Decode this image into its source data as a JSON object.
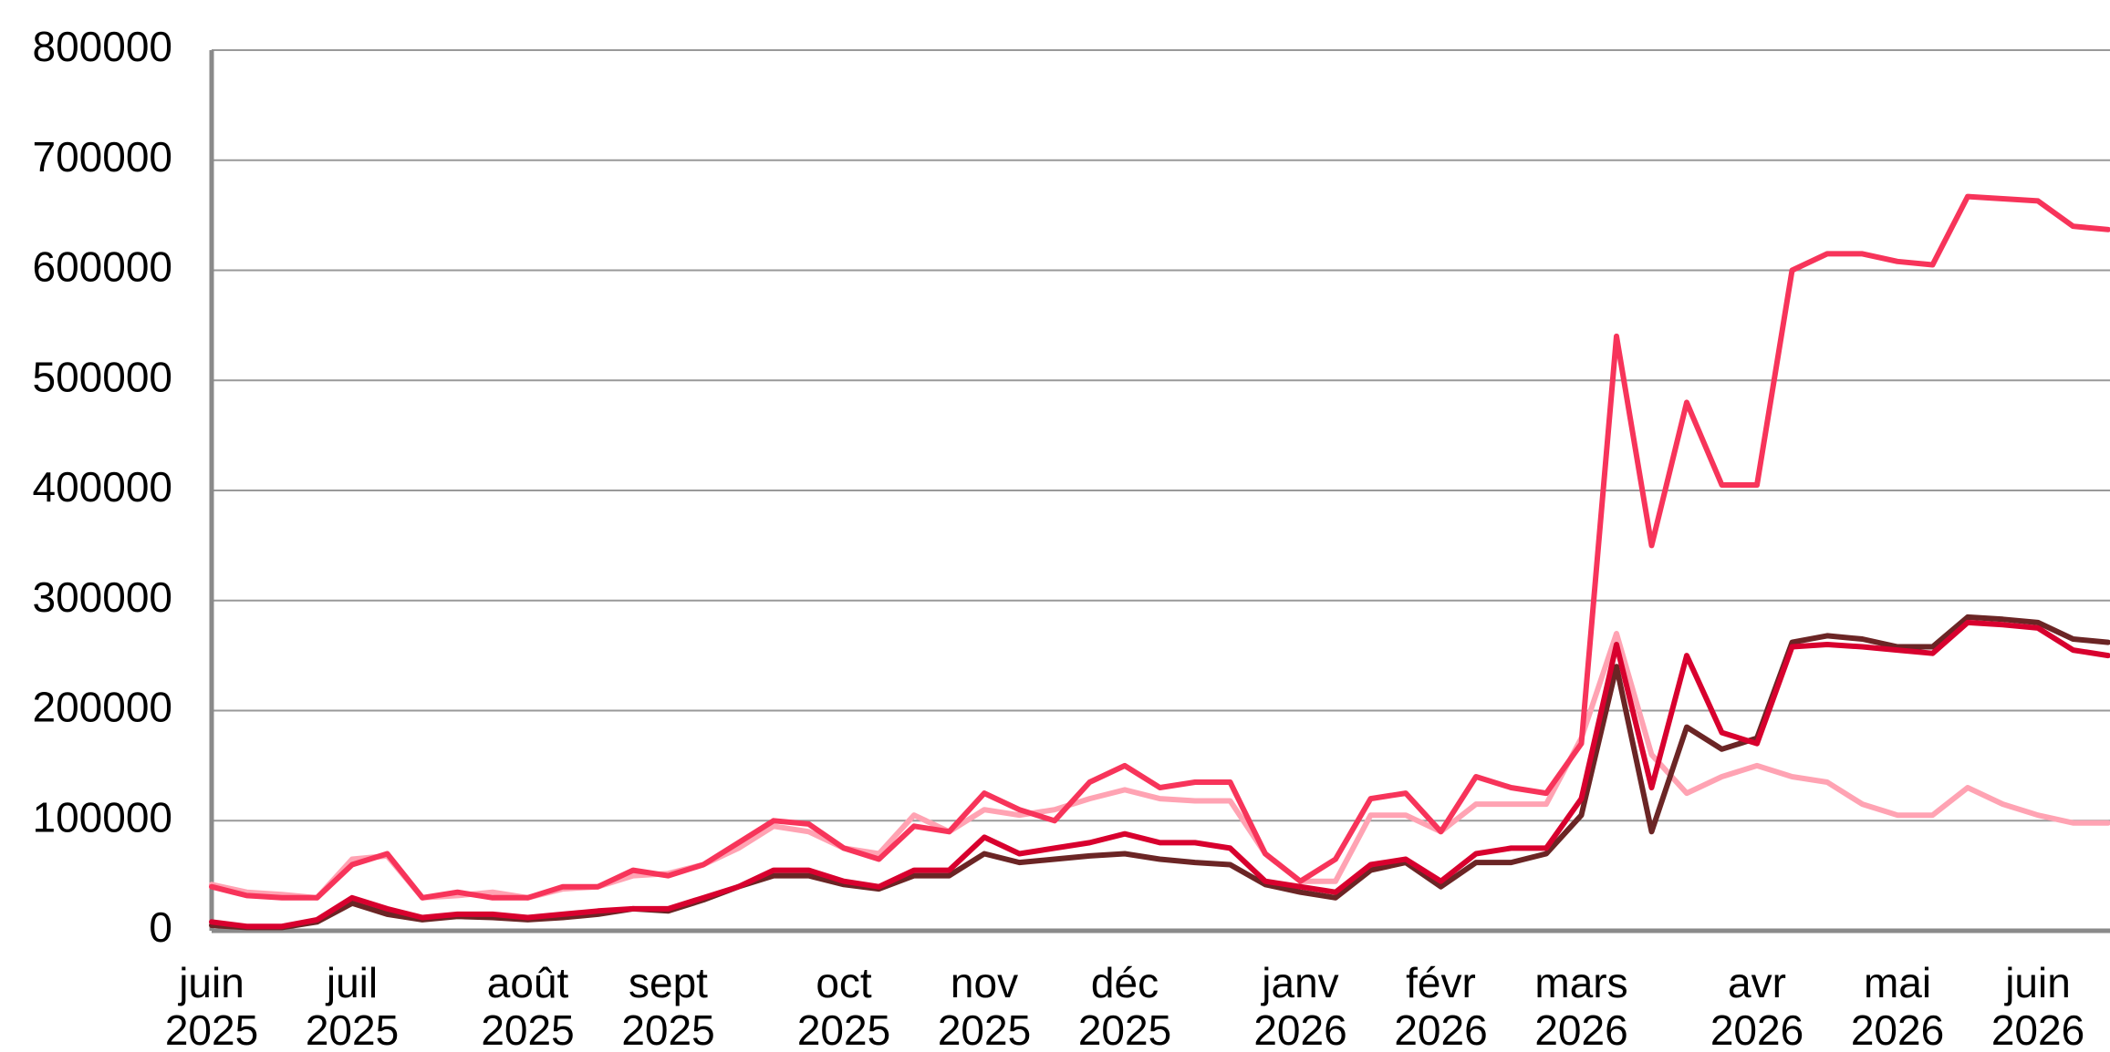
{
  "chart_data": {
    "type": "line",
    "categories": [
      "juin 2025",
      null,
      null,
      null,
      "juil 2025",
      null,
      null,
      null,
      null,
      "août 2025",
      null,
      null,
      null,
      "sept 2025",
      null,
      null,
      null,
      null,
      "oct 2025",
      null,
      null,
      null,
      "nov 2025",
      null,
      null,
      null,
      "déc 2025",
      null,
      null,
      null,
      null,
      "janv 2026",
      null,
      null,
      null,
      "févr 2026",
      null,
      null,
      null,
      "mars 2026",
      null,
      null,
      null,
      null,
      "avr 2026",
      null,
      null,
      null,
      "mai 2026",
      null,
      null,
      null,
      "juin 2026",
      null,
      null
    ],
    "series": [
      {
        "color": "#ffa3b3",
        "values": [
          42000,
          35000,
          33000,
          30000,
          65000,
          68000,
          30000,
          32000,
          35000,
          30000,
          38000,
          40000,
          50000,
          52000,
          60000,
          75000,
          95000,
          90000,
          75000,
          70000,
          105000,
          90000,
          110000,
          105000,
          110000,
          120000,
          128000,
          120000,
          118000,
          118000,
          70000,
          45000,
          45000,
          105000,
          105000,
          90000,
          115000,
          115000,
          115000,
          175000,
          270000,
          160000,
          125000,
          140000,
          150000,
          140000,
          135000,
          115000,
          105000,
          105000,
          130000,
          115000,
          105000,
          98000,
          98000
        ]
      },
      {
        "color": "#6b2525",
        "values": [
          5000,
          3000,
          3000,
          8000,
          25000,
          15000,
          10000,
          13000,
          12000,
          10000,
          12000,
          15000,
          20000,
          18000,
          28000,
          40000,
          50000,
          50000,
          42000,
          38000,
          50000,
          50000,
          70000,
          62000,
          65000,
          68000,
          70000,
          65000,
          62000,
          60000,
          42000,
          35000,
          30000,
          55000,
          62000,
          40000,
          62000,
          62000,
          70000,
          105000,
          240000,
          90000,
          185000,
          165000,
          175000,
          262000,
          268000,
          265000,
          258000,
          258000,
          285000,
          283000,
          280000,
          265000,
          262000
        ]
      },
      {
        "color": "#d8002e",
        "values": [
          8000,
          4000,
          4000,
          10000,
          30000,
          20000,
          12000,
          15000,
          15000,
          12000,
          15000,
          18000,
          20000,
          20000,
          30000,
          40000,
          55000,
          55000,
          45000,
          40000,
          55000,
          55000,
          85000,
          70000,
          75000,
          80000,
          88000,
          80000,
          80000,
          75000,
          45000,
          40000,
          35000,
          60000,
          65000,
          45000,
          70000,
          75000,
          75000,
          120000,
          260000,
          130000,
          250000,
          180000,
          170000,
          258000,
          260000,
          258000,
          255000,
          252000,
          280000,
          278000,
          275000,
          255000,
          250000
        ]
      },
      {
        "color": "#f7345a",
        "values": [
          40000,
          32000,
          30000,
          30000,
          60000,
          70000,
          30000,
          35000,
          30000,
          30000,
          40000,
          40000,
          55000,
          50000,
          60000,
          80000,
          100000,
          97000,
          75000,
          65000,
          95000,
          90000,
          125000,
          110000,
          100000,
          135000,
          150000,
          130000,
          135000,
          135000,
          70000,
          45000,
          65000,
          120000,
          125000,
          90000,
          140000,
          130000,
          125000,
          170000,
          540000,
          350000,
          480000,
          405000,
          405000,
          600000,
          615000,
          615000,
          608000,
          605000,
          667000,
          665000,
          663000,
          640000,
          637000
        ]
      }
    ],
    "ylim": [
      0,
      800000
    ],
    "yticks": [
      0,
      100000,
      200000,
      300000,
      400000,
      500000,
      600000,
      700000,
      800000
    ],
    "grid": true
  }
}
